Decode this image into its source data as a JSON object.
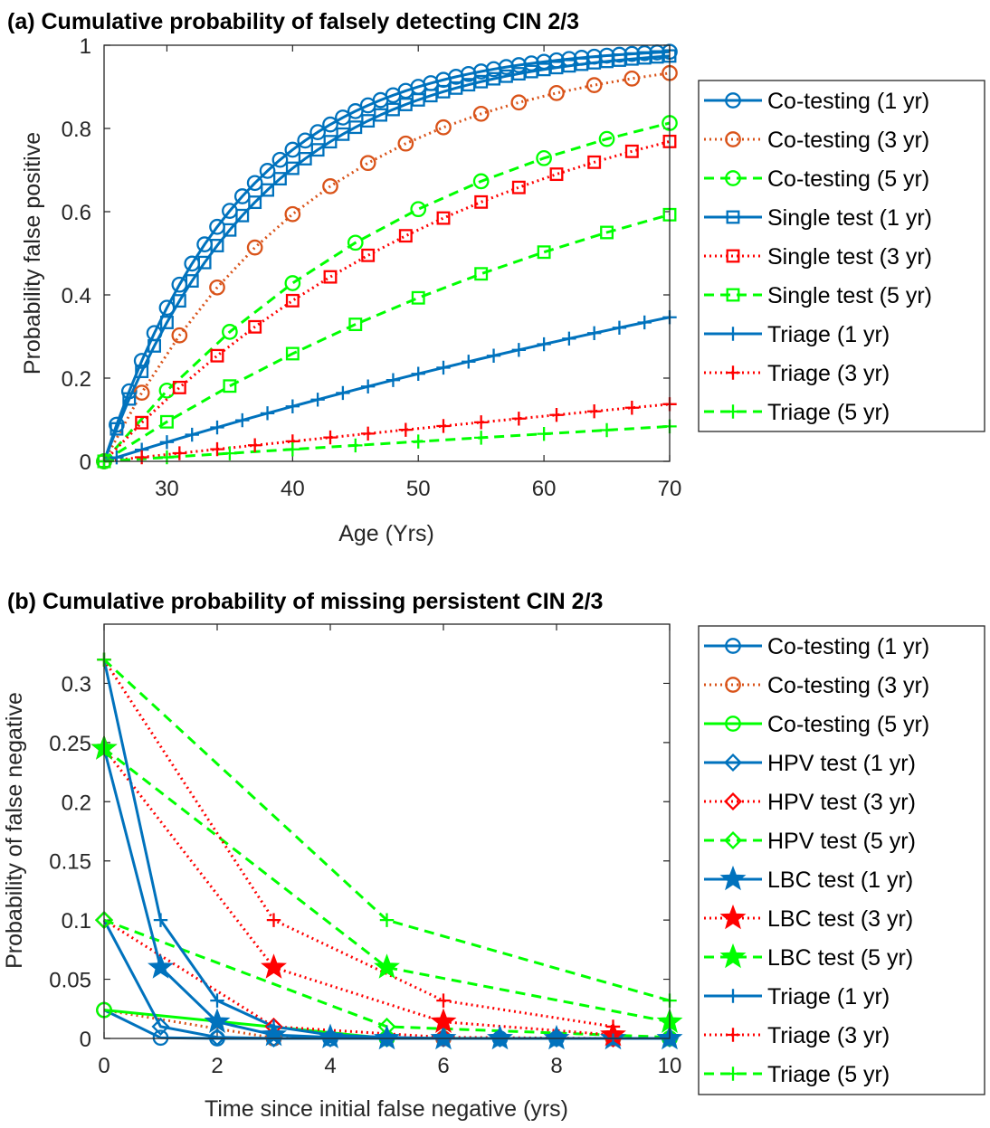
{
  "colors": {
    "blue": "#0072BD",
    "orange": "#D95319",
    "red": "#FF0000",
    "green": "#00FF00"
  },
  "chart_data": [
    {
      "type": "line",
      "title": "(a) Cumulative probability of falsely detecting CIN 2/3",
      "xlabel": "Age (Yrs)",
      "ylabel": "Probability false positive",
      "xlim": [
        25,
        70
      ],
      "ylim": [
        0,
        1
      ],
      "xticks": [
        "30",
        "40",
        "50",
        "60",
        "70"
      ],
      "yticks": [
        "0",
        "0.2",
        "0.4",
        "0.6",
        "0.8",
        "1"
      ],
      "legend_position": "outside-right",
      "series": [
        {
          "name": "Co-testing (1 yr)",
          "color": "blue",
          "dash": "solid",
          "marker": "circle",
          "interval": 1,
          "p": 0.088
        },
        {
          "name": "Co-testing (3 yr)",
          "color": "orange",
          "dash": "dot",
          "marker": "circle",
          "interval": 3,
          "p": 0.165
        },
        {
          "name": "Co-testing (5 yr)",
          "color": "green",
          "dash": "dash",
          "marker": "circle",
          "interval": 5,
          "p": 0.17
        },
        {
          "name": "Single test (1 yr)",
          "color": "blue",
          "dash": "solid",
          "marker": "square",
          "interval": 1,
          "p": 0.078
        },
        {
          "name": "Single test (3 yr)",
          "color": "red",
          "dash": "dot",
          "marker": "square",
          "interval": 3,
          "p": 0.093
        },
        {
          "name": "Single test (5 yr)",
          "color": "green",
          "dash": "dash",
          "marker": "square",
          "interval": 5,
          "p": 0.095
        },
        {
          "name": "Triage (1 yr)",
          "color": "blue",
          "dash": "solid",
          "marker": "plus",
          "interval": 1,
          "p": 0.0094
        },
        {
          "name": "Triage (3 yr)",
          "color": "red",
          "dash": "dot",
          "marker": "plus",
          "interval": 3,
          "p": 0.0098
        },
        {
          "name": "Triage (5 yr)",
          "color": "green",
          "dash": "dash",
          "marker": "plus",
          "interval": 5,
          "p": 0.0097
        }
      ]
    },
    {
      "type": "line",
      "title": "(b) Cumulative probability of missing persistent CIN 2/3",
      "xlabel": "Time since initial false negative (yrs)",
      "ylabel": "Probability of false negative",
      "xlim": [
        0,
        10
      ],
      "ylim": [
        0,
        0.35
      ],
      "xticks": [
        "0",
        "2",
        "4",
        "6",
        "8",
        "10"
      ],
      "yticks": [
        "0",
        "0.05",
        "0.1",
        "0.15",
        "0.2",
        "0.25",
        "0.3"
      ],
      "legend_position": "outside-right",
      "series": [
        {
          "name": "Co-testing (1 yr)",
          "color": "blue",
          "dash": "solid",
          "marker": "circle",
          "x": [
            0,
            1,
            2,
            3,
            4,
            5,
            6,
            7,
            8,
            9,
            10
          ],
          "y": [
            0.024,
            0.0006,
            0,
            0,
            0,
            0,
            0,
            0,
            0,
            0,
            0
          ]
        },
        {
          "name": "Co-testing (3 yr)",
          "color": "orange",
          "dash": "dot",
          "marker": "circle",
          "x": [
            0,
            3,
            6,
            9
          ],
          "y": [
            0.024,
            0.0004,
            0,
            0
          ]
        },
        {
          "name": "Co-testing (5 yr)",
          "color": "green",
          "dash": "solid",
          "marker": "circle",
          "x": [
            0,
            5,
            10
          ],
          "y": [
            0.024,
            0.0001,
            0
          ]
        },
        {
          "name": "HPV test (1 yr)",
          "color": "blue",
          "dash": "solid",
          "marker": "diamond",
          "x": [
            0,
            1,
            2,
            3,
            4,
            5,
            6,
            7,
            8,
            9,
            10
          ],
          "y": [
            0.1,
            0.01,
            0.001,
            0,
            0,
            0,
            0,
            0,
            0,
            0,
            0
          ]
        },
        {
          "name": "HPV test (3 yr)",
          "color": "red",
          "dash": "dot",
          "marker": "diamond",
          "x": [
            0,
            3,
            6,
            9
          ],
          "y": [
            0.1,
            0.01,
            0.001,
            0
          ]
        },
        {
          "name": "HPV test (5 yr)",
          "color": "green",
          "dash": "dash",
          "marker": "diamond",
          "x": [
            0,
            5,
            10
          ],
          "y": [
            0.1,
            0.01,
            0.001
          ]
        },
        {
          "name": "LBC test (1 yr)",
          "color": "blue",
          "dash": "solid",
          "marker": "star",
          "x": [
            0,
            1,
            2,
            3,
            4,
            5,
            6,
            7,
            8,
            9,
            10
          ],
          "y": [
            0.245,
            0.06,
            0.014,
            0.003,
            0.001,
            0,
            0,
            0,
            0,
            0,
            0
          ]
        },
        {
          "name": "LBC test (3 yr)",
          "color": "red",
          "dash": "dot",
          "marker": "star",
          "x": [
            0,
            3,
            6,
            9
          ],
          "y": [
            0.245,
            0.06,
            0.014,
            0.003
          ]
        },
        {
          "name": "LBC test (5 yr)",
          "color": "green",
          "dash": "dash",
          "marker": "star",
          "x": [
            0,
            5,
            10
          ],
          "y": [
            0.245,
            0.06,
            0.014
          ]
        },
        {
          "name": "Triage (1 yr)",
          "color": "blue",
          "dash": "solid",
          "marker": "plus",
          "x": [
            0,
            1,
            2,
            3,
            4,
            5,
            6,
            7,
            8,
            9,
            10
          ],
          "y": [
            0.32,
            0.1,
            0.032,
            0.01,
            0.003,
            0.001,
            0,
            0,
            0,
            0,
            0
          ]
        },
        {
          "name": "Triage (3 yr)",
          "color": "red",
          "dash": "dot",
          "marker": "plus",
          "x": [
            0,
            3,
            6,
            9
          ],
          "y": [
            0.32,
            0.1,
            0.032,
            0.01
          ]
        },
        {
          "name": "Triage (5 yr)",
          "color": "green",
          "dash": "dash",
          "marker": "plus",
          "x": [
            0,
            5,
            10
          ],
          "y": [
            0.32,
            0.1,
            0.032
          ]
        }
      ]
    }
  ]
}
